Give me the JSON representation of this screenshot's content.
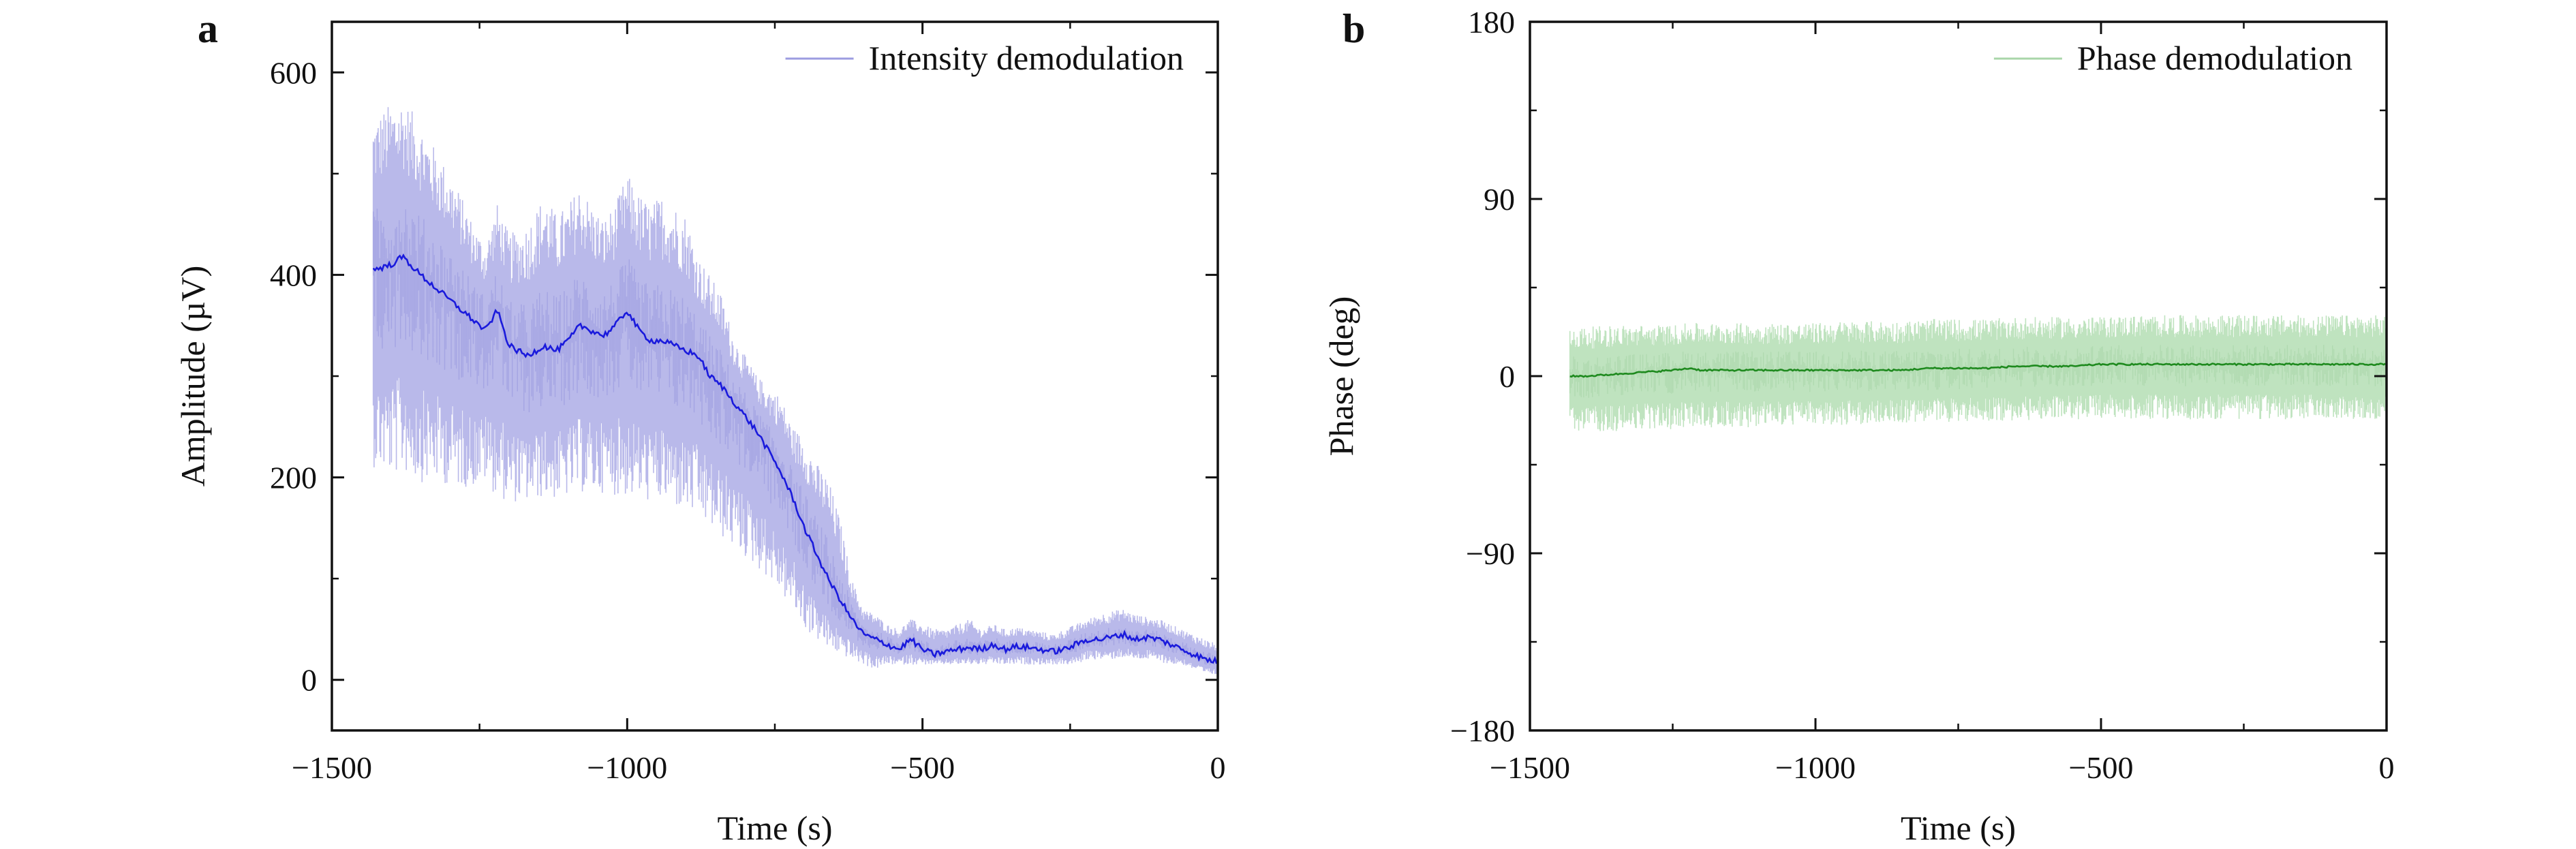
{
  "chart_data": [
    {
      "type": "line",
      "panel_label": "a",
      "xlabel": "Time (s)",
      "ylabel": "Amplitude (µV)",
      "xlim": [
        -1500,
        0
      ],
      "ylim": [
        -50,
        650
      ],
      "x_ticks": [
        -1500,
        -1000,
        -500,
        0
      ],
      "x_tick_labels": [
        "−1500",
        "−1000",
        "−500",
        "0"
      ],
      "y_ticks": [
        0,
        200,
        400,
        600
      ],
      "y_tick_labels": [
        "0",
        "200",
        "400",
        "600"
      ],
      "legend": {
        "position": "top-right",
        "entries": [
          "Intensity demodulation"
        ]
      },
      "grid": false,
      "colors": {
        "line": "#1a1adc",
        "band": "#b9b9ea",
        "band_inner": "#9c9ce0"
      },
      "series": [
        {
          "name": "Intensity demodulation",
          "x": [
            -1430,
            -1400,
            -1380,
            -1350,
            -1320,
            -1290,
            -1260,
            -1240,
            -1220,
            -1200,
            -1170,
            -1140,
            -1120,
            -1100,
            -1080,
            -1060,
            -1040,
            -1020,
            -1000,
            -980,
            -960,
            -940,
            -920,
            -900,
            -880,
            -860,
            -840,
            -820,
            -800,
            -780,
            -760,
            -740,
            -720,
            -700,
            -680,
            -660,
            -640,
            -620,
            -600,
            -580,
            -560,
            -540,
            -520,
            -500,
            -480,
            -460,
            -440,
            -420,
            -400,
            -380,
            -360,
            -340,
            -320,
            -300,
            -280,
            -260,
            -240,
            -220,
            -200,
            -180,
            -160,
            -140,
            -120,
            -100,
            -80,
            -60,
            -40,
            -20,
            0
          ],
          "y": [
            405,
            410,
            418,
            400,
            385,
            370,
            355,
            345,
            365,
            330,
            320,
            330,
            325,
            335,
            350,
            345,
            340,
            350,
            365,
            345,
            335,
            335,
            330,
            325,
            320,
            300,
            290,
            275,
            260,
            245,
            225,
            205,
            180,
            150,
            125,
            100,
            80,
            60,
            45,
            40,
            35,
            30,
            40,
            30,
            25,
            28,
            30,
            32,
            30,
            35,
            30,
            33,
            32,
            30,
            28,
            30,
            35,
            40,
            40,
            42,
            45,
            40,
            42,
            40,
            35,
            30,
            25,
            20,
            18
          ],
          "band_low": [
            210,
            200,
            205,
            195,
            195,
            190,
            190,
            195,
            180,
            175,
            175,
            180,
            178,
            180,
            185,
            182,
            185,
            182,
            180,
            178,
            175,
            175,
            170,
            165,
            160,
            150,
            140,
            130,
            120,
            110,
            100,
            85,
            70,
            50,
            40,
            30,
            25,
            20,
            15,
            10,
            15,
            15,
            15,
            15,
            15,
            15,
            15,
            15,
            15,
            15,
            15,
            15,
            15,
            15,
            15,
            15,
            15,
            20,
            20,
            20,
            22,
            20,
            20,
            18,
            15,
            15,
            10,
            5,
            5
          ],
          "band_high": [
            555,
            570,
            575,
            550,
            520,
            490,
            450,
            430,
            470,
            440,
            450,
            480,
            460,
            470,
            490,
            470,
            455,
            470,
            500,
            480,
            470,
            480,
            470,
            460,
            420,
            400,
            380,
            340,
            320,
            300,
            290,
            280,
            250,
            240,
            215,
            200,
            160,
            100,
            70,
            65,
            55,
            50,
            60,
            55,
            50,
            50,
            55,
            60,
            50,
            55,
            50,
            52,
            50,
            48,
            45,
            50,
            55,
            60,
            65,
            68,
            70,
            65,
            62,
            60,
            55,
            50,
            45,
            40,
            35
          ]
        }
      ]
    },
    {
      "type": "line",
      "panel_label": "b",
      "xlabel": "Time (s)",
      "ylabel": "Phase (deg)",
      "xlim": [
        -1500,
        0
      ],
      "ylim": [
        -180,
        180
      ],
      "x_ticks": [
        -1500,
        -1000,
        -500,
        0
      ],
      "x_tick_labels": [
        "−1500",
        "−1000",
        "−500",
        "0"
      ],
      "y_ticks": [
        -180,
        -90,
        0,
        90,
        180
      ],
      "y_tick_labels": [
        "−180",
        "−90",
        "0",
        "90",
        "180"
      ],
      "legend": {
        "position": "top-right",
        "entries": [
          "Phase demodulation"
        ]
      },
      "grid": false,
      "colors": {
        "line": "#1e8a1e",
        "band": "#bfe3bf",
        "band_inner": "#a9d6a9"
      },
      "series": [
        {
          "name": "Phase demodulation",
          "x": [
            -1430,
            -1400,
            -1350,
            -1300,
            -1250,
            -1220,
            -1200,
            -1150,
            -1100,
            -1050,
            -1000,
            -950,
            -900,
            -850,
            -800,
            -750,
            -700,
            -650,
            -600,
            -550,
            -500,
            -450,
            -400,
            -350,
            -300,
            -250,
            -200,
            -150,
            -100,
            -50,
            0
          ],
          "y": [
            0,
            0,
            1,
            2,
            3,
            4,
            3,
            3,
            3,
            3,
            3,
            3,
            3,
            3,
            4,
            4,
            4,
            5,
            5,
            5,
            6,
            6,
            6,
            6,
            6,
            6,
            6,
            6,
            6,
            6,
            6
          ],
          "band_low": [
            -28,
            -28,
            -28,
            -27,
            -27,
            -26,
            -26,
            -26,
            -26,
            -25,
            -25,
            -25,
            -24,
            -24,
            -24,
            -23,
            -23,
            -23,
            -22,
            -22,
            -22,
            -22,
            -22,
            -22,
            -22,
            -22,
            -22,
            -22,
            -22,
            -22,
            -22
          ],
          "band_high": [
            25,
            25,
            26,
            26,
            26,
            27,
            27,
            27,
            27,
            27,
            27,
            28,
            28,
            28,
            29,
            29,
            29,
            30,
            30,
            30,
            30,
            31,
            31,
            31,
            31,
            31,
            31,
            31,
            31,
            31,
            31
          ]
        }
      ]
    }
  ]
}
